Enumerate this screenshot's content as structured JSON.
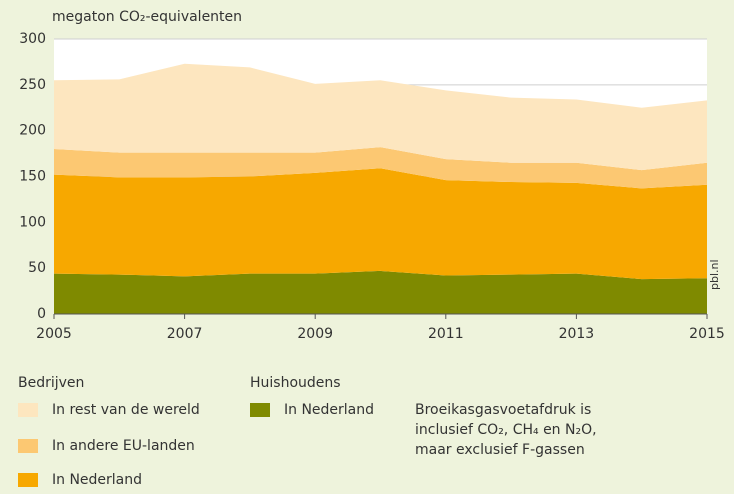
{
  "chart_data": {
    "type": "stacked_area",
    "y_axis_label": "megaton CO₂-equivalenten",
    "x": [
      2005,
      2006,
      2007,
      2008,
      2009,
      2010,
      2011,
      2012,
      2013,
      2014,
      2015
    ],
    "xlim": [
      2005,
      2015
    ],
    "xticks": [
      2005,
      2007,
      2009,
      2011,
      2013,
      2015
    ],
    "ylim": [
      0,
      300
    ],
    "yticks": [
      0,
      50,
      100,
      150,
      200,
      250,
      300
    ],
    "grid": true,
    "groups": [
      {
        "name": "Bedrijven",
        "series": [
          {
            "name": "In rest van de wereld",
            "color": "#fde6bf",
            "values": [
              75,
              80,
              97,
              93,
              75,
              73,
              75,
              71,
              69,
              68,
              68
            ]
          },
          {
            "name": "In andere EU-landen",
            "color": "#fcc872",
            "values": [
              28,
              27,
              27,
              26,
              22,
              23,
              23,
              21,
              22,
              20,
              24
            ]
          },
          {
            "name": "In Nederland",
            "color": "#f7a800",
            "values": [
              108,
              106,
              108,
              106,
              110,
              112,
              104,
              101,
              99,
              99,
              102
            ]
          }
        ]
      },
      {
        "name": "Huishoudens",
        "series": [
          {
            "name": "In Nederland",
            "color": "#7f8a00",
            "values": [
              44,
              43,
              41,
              44,
              44,
              47,
              42,
              43,
              44,
              38,
              39
            ]
          }
        ]
      }
    ],
    "note": [
      "Broeikasgasvoetafdruk is",
      "inclusief CO₂, CH₄ en N₂O,",
      "maar exclusief F-gassen"
    ],
    "source": "pbl.nl"
  }
}
